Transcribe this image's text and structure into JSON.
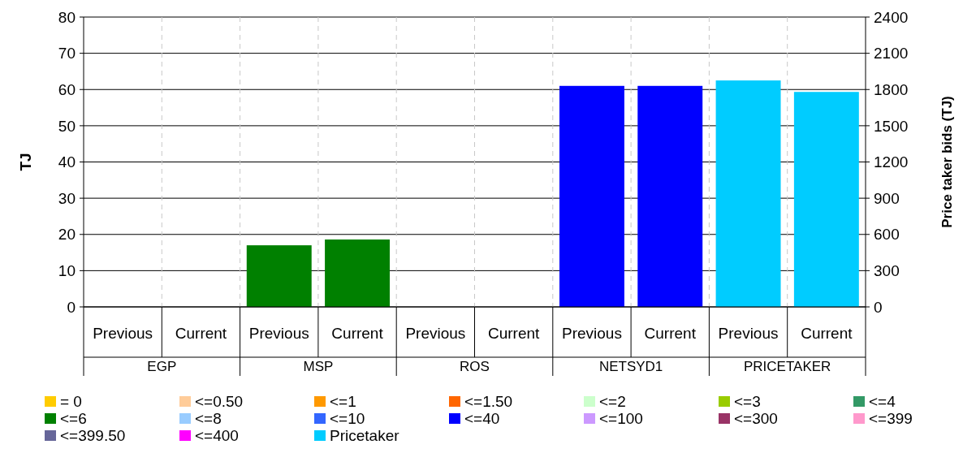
{
  "chart_data": {
    "type": "bar",
    "ylabel": "TJ",
    "y2label": "Price taker bids (TJ)",
    "categories": [
      "Previous",
      "Current",
      "Previous",
      "Current",
      "Previous",
      "Current",
      "Previous",
      "Current",
      "Previous",
      "Current"
    ],
    "annotations": [
      "EGP",
      "MSP",
      "ROS",
      "NETSYD1",
      "PRICETAKER"
    ],
    "ylim": [
      0,
      80
    ],
    "yticks": [
      0,
      10,
      20,
      30,
      40,
      50,
      60,
      70,
      80
    ],
    "y2lim": [
      0,
      2400
    ],
    "y2ticks": [
      0,
      300,
      600,
      900,
      1200,
      1500,
      1800,
      2100,
      2400
    ],
    "grid": true,
    "legend": "bottom",
    "series": [
      {
        "name": "= 0",
        "color": "#ffcc00",
        "values": [
          null,
          null,
          null,
          null,
          null,
          null,
          null,
          null,
          null,
          null
        ]
      },
      {
        "name": "<=0.50",
        "color": "#ffcc99",
        "values": [
          null,
          null,
          null,
          null,
          null,
          null,
          null,
          null,
          null,
          null
        ]
      },
      {
        "name": "<=1",
        "color": "#ff9900",
        "values": [
          null,
          null,
          null,
          null,
          null,
          null,
          null,
          null,
          null,
          null
        ]
      },
      {
        "name": "<=1.50",
        "color": "#ff6600",
        "values": [
          null,
          null,
          null,
          null,
          null,
          null,
          null,
          null,
          null,
          null
        ]
      },
      {
        "name": "<=2",
        "color": "#ccffcc",
        "values": [
          null,
          null,
          null,
          null,
          null,
          null,
          null,
          null,
          null,
          null
        ]
      },
      {
        "name": "<=3",
        "color": "#99cc00",
        "values": [
          null,
          null,
          null,
          null,
          null,
          null,
          null,
          null,
          null,
          null
        ]
      },
      {
        "name": "<=4",
        "color": "#339966",
        "values": [
          null,
          null,
          null,
          null,
          null,
          null,
          null,
          null,
          null,
          null
        ]
      },
      {
        "name": "<=6",
        "color": "#008000",
        "values": [
          null,
          null,
          17,
          18.6,
          null,
          null,
          null,
          null,
          null,
          null
        ]
      },
      {
        "name": "<=8",
        "color": "#99ccff",
        "values": [
          null,
          null,
          null,
          null,
          null,
          null,
          null,
          null,
          null,
          null
        ]
      },
      {
        "name": "<=10",
        "color": "#3366ff",
        "values": [
          null,
          null,
          null,
          null,
          null,
          null,
          null,
          null,
          null,
          null
        ]
      },
      {
        "name": "<=40",
        "color": "#0000ff",
        "values": [
          null,
          null,
          null,
          null,
          null,
          null,
          61,
          61,
          null,
          null
        ]
      },
      {
        "name": "<=100",
        "color": "#cc99ff",
        "values": [
          null,
          null,
          null,
          null,
          null,
          null,
          null,
          null,
          null,
          null
        ]
      },
      {
        "name": "<=300",
        "color": "#993366",
        "values": [
          null,
          null,
          null,
          null,
          null,
          null,
          null,
          null,
          null,
          null
        ]
      },
      {
        "name": "<=399",
        "color": "#ff99cc",
        "values": [
          null,
          null,
          null,
          null,
          null,
          null,
          null,
          null,
          null,
          null
        ]
      },
      {
        "name": "<=399.50",
        "color": "#666699",
        "values": [
          null,
          null,
          null,
          null,
          null,
          null,
          null,
          null,
          null,
          null
        ]
      },
      {
        "name": "<=400",
        "color": "#ff00ff",
        "values": [
          null,
          null,
          null,
          null,
          null,
          null,
          null,
          null,
          null,
          null
        ]
      },
      {
        "name": "Pricetaker",
        "color": "#00ccff",
        "axis": "y2",
        "values": [
          null,
          null,
          null,
          null,
          null,
          null,
          null,
          null,
          1875,
          1780
        ]
      }
    ]
  }
}
